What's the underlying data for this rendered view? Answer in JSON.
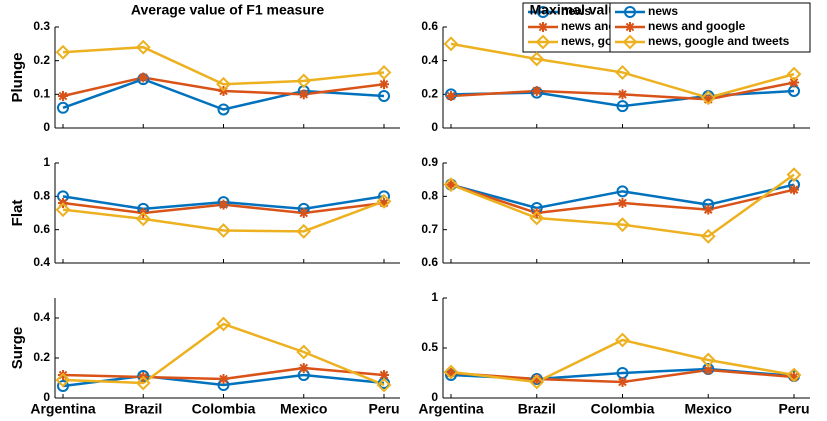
{
  "chart_data": [
    {
      "type": "line",
      "title": "Average value of F1 measure",
      "ylabel": "Plunge",
      "ylim": [
        0,
        0.3
      ],
      "yticks": [
        0,
        0.1,
        0.2,
        0.3
      ],
      "legend": "top-right",
      "series": [
        {
          "name": "news",
          "color": "#0072bd",
          "marker": "circle",
          "values": [
            0.06,
            0.145,
            0.055,
            0.11,
            0.095
          ]
        },
        {
          "name": "news and google",
          "color": "#d95319",
          "marker": "asterisk",
          "values": [
            0.095,
            0.15,
            0.11,
            0.1,
            0.13
          ]
        },
        {
          "name": "news, google and tweets",
          "color": "#edb120",
          "marker": "diamond",
          "values": [
            0.225,
            0.24,
            0.13,
            0.14,
            0.165
          ]
        }
      ]
    },
    {
      "type": "line",
      "title": "Maximal value of F1 measure",
      "ylim": [
        0,
        0.6
      ],
      "yticks": [
        0,
        0.2,
        0.4,
        0.6
      ],
      "legend": "top-right",
      "series": [
        {
          "name": "news",
          "color": "#0072bd",
          "marker": "circle",
          "values": [
            0.2,
            0.21,
            0.13,
            0.19,
            0.22
          ]
        },
        {
          "name": "news and google",
          "color": "#d95319",
          "marker": "asterisk",
          "values": [
            0.19,
            0.22,
            0.2,
            0.17,
            0.27
          ]
        },
        {
          "name": "news, google and tweets",
          "color": "#edb120",
          "marker": "diamond",
          "values": [
            0.5,
            0.41,
            0.33,
            0.18,
            0.32
          ]
        }
      ]
    },
    {
      "type": "line",
      "ylabel": "Flat",
      "ylim": [
        0.4,
        1
      ],
      "yticks": [
        0.4,
        0.6,
        0.8,
        1
      ],
      "series": [
        {
          "color": "#0072bd",
          "marker": "circle",
          "values": [
            0.8,
            0.725,
            0.765,
            0.725,
            0.8
          ]
        },
        {
          "color": "#d95319",
          "marker": "asterisk",
          "values": [
            0.76,
            0.7,
            0.75,
            0.7,
            0.76
          ]
        },
        {
          "color": "#edb120",
          "marker": "diamond",
          "values": [
            0.72,
            0.665,
            0.595,
            0.59,
            0.77
          ]
        }
      ]
    },
    {
      "type": "line",
      "ylim": [
        0.6,
        0.9
      ],
      "yticks": [
        0.6,
        0.7,
        0.8,
        0.9
      ],
      "series": [
        {
          "color": "#0072bd",
          "marker": "circle",
          "values": [
            0.835,
            0.765,
            0.815,
            0.775,
            0.835
          ]
        },
        {
          "color": "#d95319",
          "marker": "asterisk",
          "values": [
            0.835,
            0.75,
            0.78,
            0.76,
            0.82
          ]
        },
        {
          "color": "#edb120",
          "marker": "diamond",
          "values": [
            0.835,
            0.735,
            0.715,
            0.68,
            0.865
          ]
        }
      ]
    },
    {
      "type": "line",
      "ylabel": "Surge",
      "categories": [
        "Argentina",
        "Brazil",
        "Colombia",
        "Mexico",
        "Peru"
      ],
      "ylim": [
        0,
        0.5
      ],
      "yticks": [
        0,
        0.2,
        0.4
      ],
      "series": [
        {
          "color": "#0072bd",
          "marker": "circle",
          "values": [
            0.06,
            0.11,
            0.065,
            0.115,
            0.075
          ]
        },
        {
          "color": "#d95319",
          "marker": "asterisk",
          "values": [
            0.115,
            0.105,
            0.095,
            0.15,
            0.115
          ]
        },
        {
          "color": "#edb120",
          "marker": "diamond",
          "values": [
            0.09,
            0.075,
            0.37,
            0.23,
            0.065
          ]
        }
      ]
    },
    {
      "type": "line",
      "categories": [
        "Argentina",
        "Brazil",
        "Colombia",
        "Mexico",
        "Peru"
      ],
      "ylim": [
        0,
        1
      ],
      "yticks": [
        0,
        0.5,
        1
      ],
      "series": [
        {
          "color": "#0072bd",
          "marker": "circle",
          "values": [
            0.23,
            0.19,
            0.25,
            0.29,
            0.22
          ]
        },
        {
          "color": "#d95319",
          "marker": "asterisk",
          "values": [
            0.25,
            0.19,
            0.16,
            0.28,
            0.21
          ]
        },
        {
          "color": "#edb120",
          "marker": "diamond",
          "values": [
            0.26,
            0.16,
            0.58,
            0.38,
            0.23
          ]
        }
      ]
    }
  ]
}
